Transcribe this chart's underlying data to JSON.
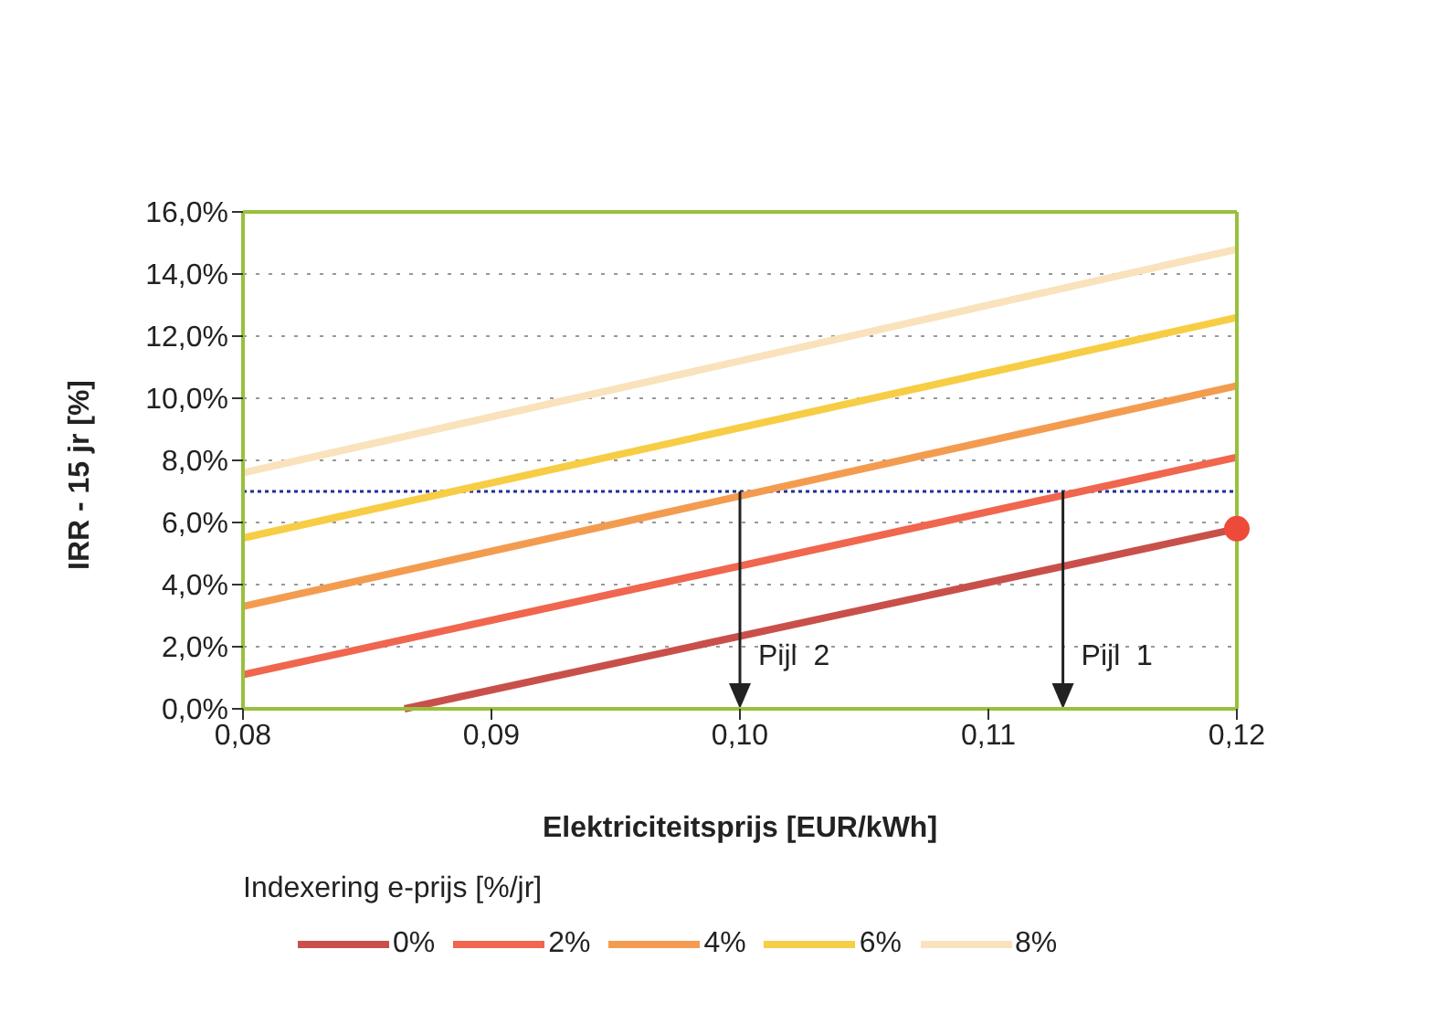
{
  "chart_data": {
    "type": "line",
    "xlabel": "Elektriciteitsprijs [EUR/kWh]",
    "ylabel": "IRR - 15 jr [%]",
    "legend_title": "Indexering e-prijs [%/jr]",
    "legend": "bottom",
    "grid": "y",
    "marker": "none",
    "line_style": "solid",
    "xlim": [
      0.08,
      0.12
    ],
    "xticks": [
      {
        "value": 0.08,
        "label": "0,08"
      },
      {
        "value": 0.09,
        "label": "0,09"
      },
      {
        "value": 0.1,
        "label": "0,10"
      },
      {
        "value": 0.11,
        "label": "0,11"
      },
      {
        "value": 0.12,
        "label": "0,12"
      }
    ],
    "ylim": [
      0,
      16
    ],
    "yticks": [
      {
        "value": 0,
        "label": "0,0%"
      },
      {
        "value": 2,
        "label": "2,0%"
      },
      {
        "value": 4,
        "label": "4,0%"
      },
      {
        "value": 6,
        "label": "6,0%"
      },
      {
        "value": 8,
        "label": "8,0%"
      },
      {
        "value": 10,
        "label": "10,0%"
      },
      {
        "value": 12,
        "label": "12,0%"
      },
      {
        "value": 14,
        "label": "14,0%"
      },
      {
        "value": 16,
        "label": "16,0%"
      }
    ],
    "x": [
      0.08,
      0.0865,
      0.12
    ],
    "series": [
      {
        "name": "0%",
        "color": "#c9504a",
        "values": [
          null,
          0,
          5.8
        ]
      },
      {
        "name": "2%",
        "color": "#f0664e",
        "values": [
          1.1,
          null,
          8.1
        ]
      },
      {
        "name": "4%",
        "color": "#f39c50",
        "values": [
          3.3,
          null,
          10.4
        ]
      },
      {
        "name": "6%",
        "color": "#f7cd45",
        "values": [
          5.5,
          null,
          12.6
        ]
      },
      {
        "name": "8%",
        "color": "#f9e2bc",
        "values": [
          7.6,
          null,
          14.8
        ]
      },
      {
        "type": "scatter",
        "marker": "circle",
        "color": "#ee4a3a",
        "x": [
          0.12
        ],
        "values": [
          5.8
        ]
      }
    ],
    "ref_lines": [
      {
        "axis": "y",
        "value": 7,
        "color": "#1f2f9a",
        "line_style": "dotted"
      }
    ],
    "annotations": [
      {
        "text": "Pijl  2",
        "x": 0.1,
        "y": 7
      },
      {
        "text": "Pijl  1",
        "x": 0.113,
        "y": 7
      }
    ]
  }
}
